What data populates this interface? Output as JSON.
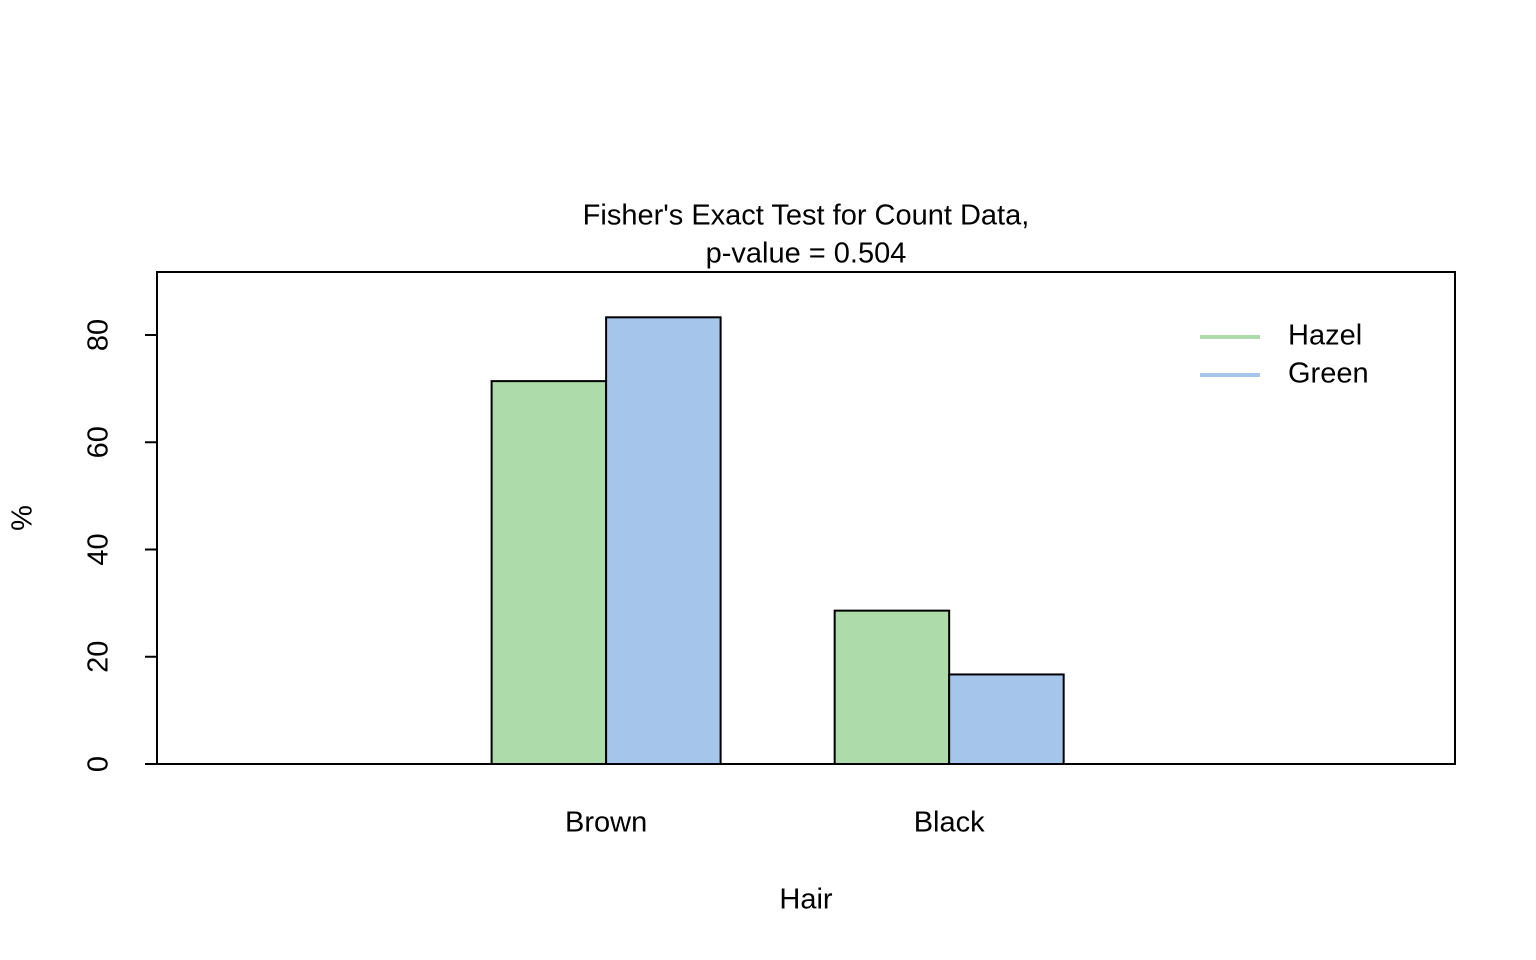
{
  "chart_data": {
    "type": "bar",
    "title": "Fisher's Exact Test for Count Data,",
    "subtitle": "p-value = 0.504",
    "x_label": "Hair",
    "y_label": "%",
    "categories": [
      "Brown",
      "Black"
    ],
    "series": [
      {
        "name": "Hazel",
        "color": "#addcaa",
        "values": [
          71.4,
          28.6
        ]
      },
      {
        "name": "Green",
        "color": "#a5c5ea",
        "values": [
          83.3,
          16.7
        ]
      }
    ],
    "ylim": [
      0,
      91.75
    ],
    "yticks": [
      0,
      20,
      40,
      60,
      80
    ],
    "grid": false,
    "legend": "top-right"
  }
}
